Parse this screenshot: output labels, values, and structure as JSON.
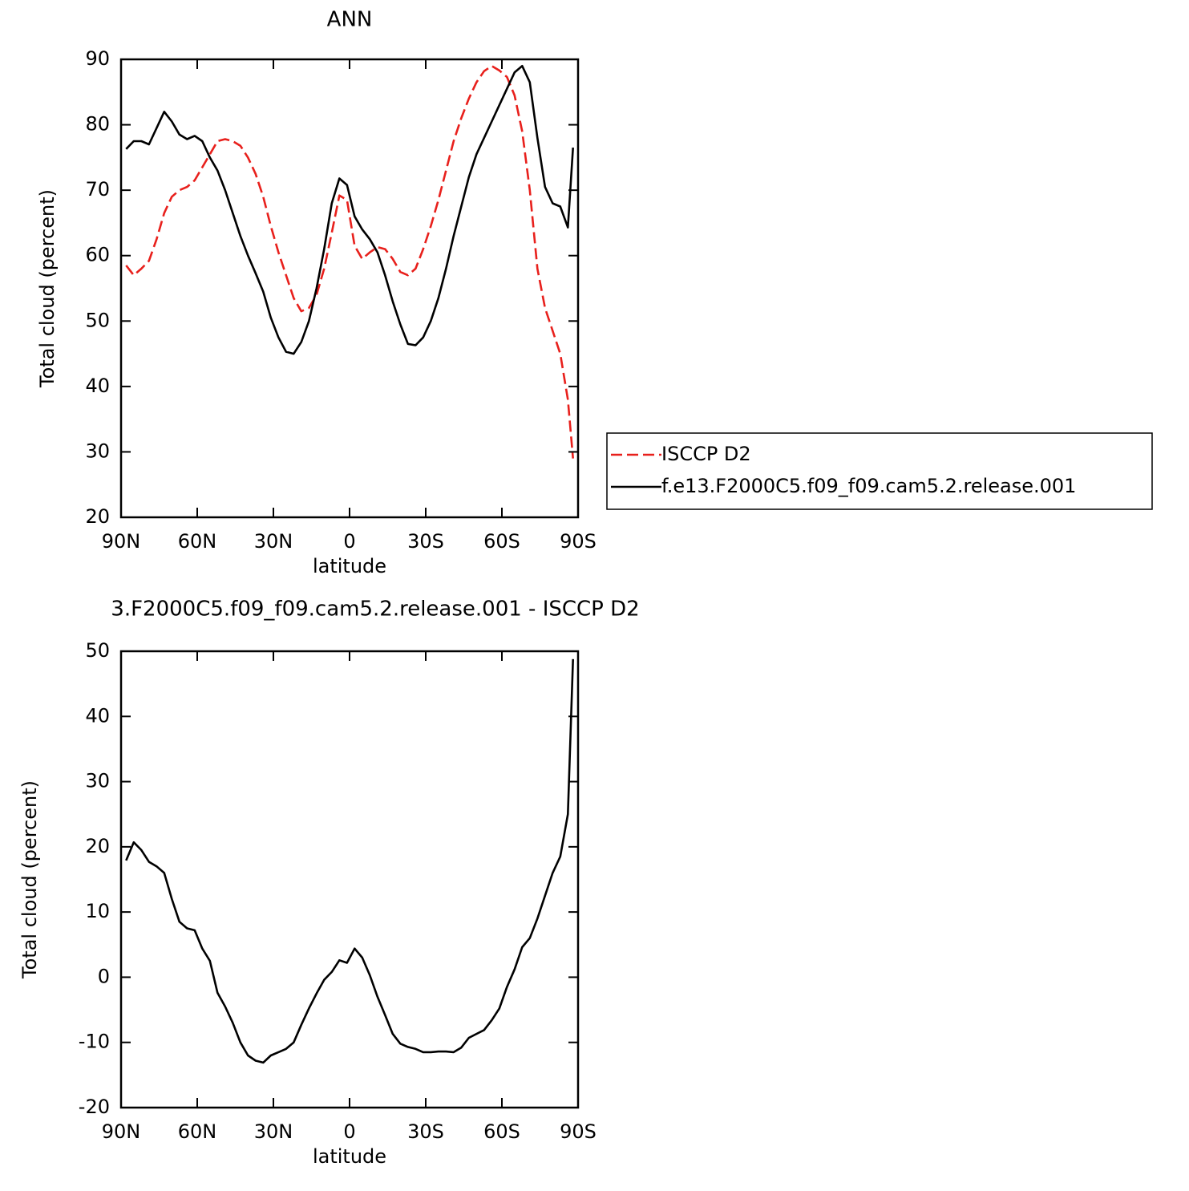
{
  "chart_data": [
    {
      "type": "line",
      "title": "ANN",
      "xlabel": "latitude",
      "ylabel": "Total cloud (percent)",
      "x": [
        88,
        85,
        82,
        79,
        76,
        73,
        70,
        67,
        64,
        61,
        58,
        55,
        52,
        49,
        46,
        43,
        40,
        37,
        34,
        31,
        28,
        25,
        22,
        19,
        16,
        13,
        10,
        7,
        4,
        1,
        -2,
        -5,
        -8,
        -11,
        -14,
        -17,
        -20,
        -23,
        -26,
        -29,
        -32,
        -35,
        -38,
        -41,
        -44,
        -47,
        -50,
        -53,
        -56,
        -59,
        -62,
        -65,
        -68,
        -71,
        -74,
        -77,
        -80,
        -83,
        -86,
        -88
      ],
      "series": [
        {
          "name": "ISCCP D2",
          "color": "#e8201c",
          "style": "dashed",
          "values": [
            58.5,
            57,
            58,
            59.2,
            62.5,
            66.5,
            69,
            70,
            70.5,
            71.5,
            73.5,
            75.5,
            77.5,
            77.8,
            77.5,
            76.8,
            75,
            72.5,
            69,
            64.5,
            60.5,
            57,
            53.5,
            51.5,
            52,
            54,
            58,
            63.5,
            69.2,
            68.5,
            61.5,
            59.5,
            60.5,
            61.3,
            61,
            59.5,
            57.5,
            57,
            58,
            61,
            64.5,
            68.5,
            73,
            77.5,
            81,
            84,
            86.5,
            88.2,
            89,
            88.3,
            87.3,
            84.5,
            79,
            70,
            58,
            52,
            48.5,
            45,
            38,
            29
          ]
        },
        {
          "name": "f.e13.F2000C5.f09_f09.cam5.2.release.001",
          "color": "#000000",
          "style": "solid",
          "values": [
            76.3,
            77.5,
            77.5,
            77,
            79.5,
            82,
            80.5,
            78.5,
            77.8,
            78.3,
            77.5,
            75,
            73,
            70,
            66.5,
            63,
            60,
            57.3,
            54.5,
            50.5,
            47.5,
            45.3,
            45,
            46.8,
            50,
            55,
            61,
            68,
            71.8,
            70.8,
            66,
            64,
            62.5,
            60.5,
            57,
            53,
            49.5,
            46.5,
            46.3,
            47.5,
            50,
            53.5,
            58,
            63,
            67.5,
            72,
            75.5,
            78,
            80.5,
            83,
            85.5,
            88,
            89,
            86.5,
            78,
            70.5,
            68,
            67.5,
            64.3,
            76.5
          ]
        }
      ],
      "xlim": [
        90,
        -90
      ],
      "xticks": [
        {
          "value": 90,
          "label": "90N"
        },
        {
          "value": 60,
          "label": "60N"
        },
        {
          "value": 30,
          "label": "30N"
        },
        0,
        {
          "value": -30,
          "label": "30S"
        },
        {
          "value": -60,
          "label": "60S"
        },
        {
          "value": -90,
          "label": "90S"
        }
      ],
      "ylim": [
        20,
        90
      ],
      "yticks": [
        20,
        30,
        40,
        50,
        60,
        70,
        80,
        90
      ],
      "legend": "right"
    },
    {
      "type": "line",
      "title": "3.F2000C5.f09_f09.cam5.2.release.001 - ISCCP D2",
      "xlabel": "latitude",
      "ylabel": "Total cloud (percent)",
      "x": [
        88,
        85,
        82,
        79,
        76,
        73,
        70,
        67,
        64,
        61,
        58,
        55,
        52,
        49,
        46,
        43,
        40,
        37,
        34,
        31,
        28,
        25,
        22,
        19,
        16,
        13,
        10,
        7,
        4,
        1,
        -2,
        -5,
        -8,
        -11,
        -14,
        -17,
        -20,
        -23,
        -26,
        -29,
        -32,
        -35,
        -38,
        -41,
        -44,
        -47,
        -50,
        -53,
        -56,
        -59,
        -62,
        -65,
        -68,
        -71,
        -74,
        -77,
        -80,
        -83,
        -86,
        -88
      ],
      "series": [
        {
          "color": "#000000",
          "style": "solid",
          "values": [
            17.9,
            20.7,
            19.5,
            17.7,
            17,
            16,
            12,
            8.5,
            7.5,
            7.2,
            4.4,
            2.5,
            -2.4,
            -4.5,
            -7,
            -10,
            -12,
            -12.8,
            -13.1,
            -12,
            -11.5,
            -11,
            -10,
            -7.3,
            -4.8,
            -2.5,
            -0.4,
            0.8,
            2.6,
            2.2,
            4.4,
            3,
            0.3,
            -3,
            -5.8,
            -8.7,
            -10.2,
            -10.7,
            -11,
            -11.5,
            -11.5,
            -11.4,
            -11.4,
            -11.5,
            -10.8,
            -9.3,
            -8.7,
            -8.1,
            -6.6,
            -4.8,
            -1.5,
            1.2,
            4.6,
            6,
            9,
            12.5,
            16,
            18.5,
            25,
            48.8
          ]
        }
      ],
      "xlim": [
        90,
        -90
      ],
      "xticks": [
        {
          "value": 90,
          "label": "90N"
        },
        {
          "value": 60,
          "label": "60N"
        },
        {
          "value": 30,
          "label": "30N"
        },
        0,
        {
          "value": -30,
          "label": "30S"
        },
        {
          "value": -60,
          "label": "60S"
        },
        {
          "value": -90,
          "label": "90S"
        }
      ],
      "ylim": [
        -20,
        50
      ],
      "yticks": [
        -20,
        -10,
        0,
        10,
        20,
        30,
        40,
        50
      ]
    }
  ]
}
